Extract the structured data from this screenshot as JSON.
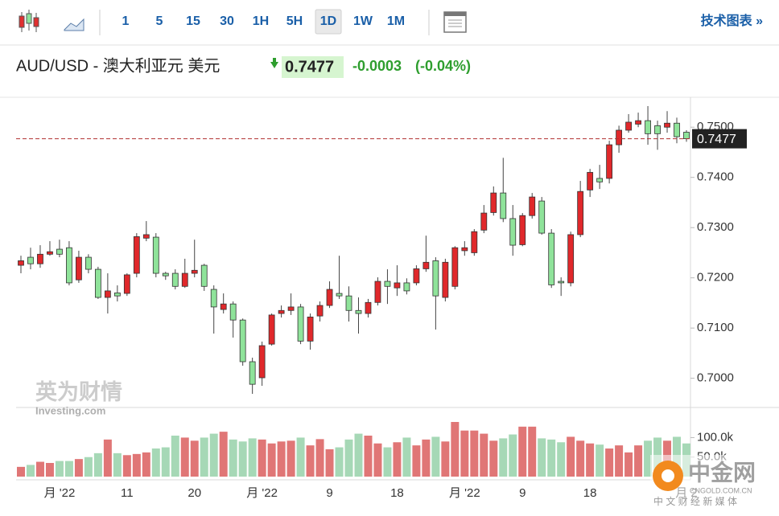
{
  "toolbar": {
    "intervals": [
      "1",
      "5",
      "15",
      "30",
      "1H",
      "5H",
      "1D",
      "1W",
      "1M"
    ],
    "active": "1D",
    "link": "技术图表 »"
  },
  "header": {
    "symbol": "AUD/USD - 澳大利亚元 美元",
    "last": 0.7477,
    "change": -0.0003,
    "change_pct": "(-0.04%)"
  },
  "watermarks": {
    "left_cn": "英为财情",
    "left_en": "Investing.com",
    "right_cn": "中金网",
    "right_url": "CNGOLD.COM.CN",
    "right_sub": "中 文 财 经 新 媒 体"
  },
  "chart_data": {
    "type": "candlestick",
    "categories": [
      null,
      null,
      null,
      null,
      "月 '22",
      null,
      null,
      null,
      null,
      null,
      null,
      "11",
      null,
      null,
      null,
      null,
      null,
      null,
      "20",
      null,
      null,
      null,
      null,
      null,
      null,
      "月 '22",
      null,
      null,
      null,
      null,
      null,
      null,
      "9",
      null,
      null,
      null,
      null,
      null,
      null,
      "18",
      null,
      null,
      null,
      null,
      null,
      null,
      "月 '22",
      null,
      null,
      null,
      null,
      null,
      "9",
      null,
      null,
      null,
      null,
      null,
      null,
      "18",
      null,
      null,
      null,
      null,
      null,
      null,
      null,
      null,
      null,
      "月 2"
    ],
    "candles": [
      [
        0.7225,
        0.7244,
        0.7209,
        0.7234
      ],
      [
        0.7241,
        0.726,
        0.7217,
        0.7228
      ],
      [
        0.7228,
        0.7265,
        0.722,
        0.7247
      ],
      [
        0.7247,
        0.7273,
        0.7244,
        0.7252
      ],
      [
        0.7257,
        0.7276,
        0.7241,
        0.7247
      ],
      [
        0.726,
        0.7273,
        0.7185,
        0.719
      ],
      [
        0.7196,
        0.7254,
        0.719,
        0.7241
      ],
      [
        0.7241,
        0.7247,
        0.7209,
        0.7217
      ],
      [
        0.7217,
        0.7222,
        0.7158,
        0.7161
      ],
      [
        0.7161,
        0.7209,
        0.7129,
        0.7174
      ],
      [
        0.717,
        0.7185,
        0.7153,
        0.7164
      ],
      [
        0.7169,
        0.7209,
        0.7164,
        0.7206
      ],
      [
        0.7209,
        0.7289,
        0.7201,
        0.7282
      ],
      [
        0.7279,
        0.7313,
        0.7273,
        0.7286
      ],
      [
        0.7281,
        0.7289,
        0.7201,
        0.7209
      ],
      [
        0.7209,
        0.7212,
        0.7196,
        0.7204
      ],
      [
        0.7209,
        0.7217,
        0.7177,
        0.7183
      ],
      [
        0.7183,
        0.7238,
        0.718,
        0.7209
      ],
      [
        0.7209,
        0.7276,
        0.7201,
        0.7215
      ],
      [
        0.7225,
        0.7228,
        0.7174,
        0.7183
      ],
      [
        0.7177,
        0.7185,
        0.7089,
        0.7142
      ],
      [
        0.7137,
        0.7169,
        0.7129,
        0.7148
      ],
      [
        0.7148,
        0.7153,
        0.7081,
        0.7116
      ],
      [
        0.7116,
        0.7119,
        0.7025,
        0.7033
      ],
      [
        0.7033,
        0.7041,
        0.6969,
        0.6988
      ],
      [
        0.7001,
        0.7073,
        0.6985,
        0.7065
      ],
      [
        0.7068,
        0.7129,
        0.7065,
        0.7126
      ],
      [
        0.7129,
        0.7145,
        0.7121,
        0.7135
      ],
      [
        0.7135,
        0.7169,
        0.7126,
        0.7142
      ],
      [
        0.7142,
        0.7148,
        0.7068,
        0.7074
      ],
      [
        0.7074,
        0.7129,
        0.7057,
        0.7122
      ],
      [
        0.7124,
        0.7153,
        0.7113,
        0.7145
      ],
      [
        0.7145,
        0.7193,
        0.714,
        0.7177
      ],
      [
        0.7169,
        0.7244,
        0.7158,
        0.7164
      ],
      [
        0.7164,
        0.7183,
        0.7113,
        0.7135
      ],
      [
        0.7135,
        0.7161,
        0.7089,
        0.7129
      ],
      [
        0.7129,
        0.7158,
        0.7121,
        0.7151
      ],
      [
        0.7151,
        0.7201,
        0.7145,
        0.7193
      ],
      [
        0.7193,
        0.7217,
        0.7148,
        0.7183
      ],
      [
        0.718,
        0.7225,
        0.7164,
        0.719
      ],
      [
        0.719,
        0.7199,
        0.7167,
        0.7174
      ],
      [
        0.719,
        0.7225,
        0.7185,
        0.7218
      ],
      [
        0.7218,
        0.7284,
        0.7212,
        0.7231
      ],
      [
        0.7234,
        0.7241,
        0.7097,
        0.7164
      ],
      [
        0.7161,
        0.7238,
        0.7153,
        0.7231
      ],
      [
        0.7183,
        0.7263,
        0.7177,
        0.726
      ],
      [
        0.7254,
        0.7273,
        0.7244,
        0.726
      ],
      [
        0.725,
        0.7297,
        0.7244,
        0.7292
      ],
      [
        0.7295,
        0.7345,
        0.7289,
        0.7329
      ],
      [
        0.733,
        0.7382,
        0.7324,
        0.7369
      ],
      [
        0.7369,
        0.7439,
        0.7311,
        0.7318
      ],
      [
        0.7318,
        0.7345,
        0.7244,
        0.7265
      ],
      [
        0.7266,
        0.7329,
        0.7263,
        0.7324
      ],
      [
        0.7324,
        0.7369,
        0.7318,
        0.7361
      ],
      [
        0.7353,
        0.7361,
        0.7286,
        0.7289
      ],
      [
        0.7289,
        0.7297,
        0.718,
        0.7186
      ],
      [
        0.7193,
        0.7201,
        0.7164,
        0.719
      ],
      [
        0.719,
        0.7292,
        0.7183,
        0.7286
      ],
      [
        0.7286,
        0.7393,
        0.7281,
        0.7372
      ],
      [
        0.7375,
        0.7417,
        0.7361,
        0.741
      ],
      [
        0.7398,
        0.7425,
        0.7377,
        0.7391
      ],
      [
        0.7398,
        0.7473,
        0.7388,
        0.7465
      ],
      [
        0.7465,
        0.7503,
        0.7449,
        0.7494
      ],
      [
        0.7494,
        0.7526,
        0.7489,
        0.751
      ],
      [
        0.7506,
        0.7529,
        0.75,
        0.7513
      ],
      [
        0.7513,
        0.7542,
        0.7465,
        0.7487
      ],
      [
        0.7503,
        0.7513,
        0.7455,
        0.7487
      ],
      [
        0.75,
        0.7532,
        0.7489,
        0.7508
      ],
      [
        0.7508,
        0.7519,
        0.7468,
        0.7481
      ],
      [
        0.749,
        0.7494,
        0.7471,
        0.7477
      ]
    ],
    "up_color": "#e0282b",
    "down_color": "#8fe39a",
    "ylim": [
      0.6945,
      0.7558
    ],
    "yticks": [
      {
        "value": 0.7,
        "label": "0.7000"
      },
      {
        "value": 0.71,
        "label": "0.7100"
      },
      {
        "value": 0.72,
        "label": "0.7200"
      },
      {
        "value": 0.73,
        "label": "0.7300"
      },
      {
        "value": 0.74,
        "label": "0.7400"
      },
      {
        "value": 0.75,
        "label": "0.7500"
      }
    ],
    "last_price": 0.7477,
    "volume": {
      "up_color": "#e07676",
      "down_color": "#a6d8b6",
      "values": [
        25000,
        30000,
        38000,
        35000,
        40000,
        40000,
        45000,
        50000,
        60000,
        95000,
        60000,
        55000,
        58000,
        62000,
        72000,
        75000,
        105000,
        100000,
        92000,
        100000,
        110000,
        115000,
        95000,
        90000,
        98000,
        95000,
        85000,
        90000,
        92000,
        100000,
        80000,
        96000,
        70000,
        75000,
        95000,
        110000,
        105000,
        85000,
        75000,
        88000,
        100000,
        80000,
        95000,
        102000,
        90000,
        140000,
        118000,
        118000,
        110000,
        92000,
        98000,
        108000,
        128000,
        128000,
        98000,
        95000,
        88000,
        102000,
        92000,
        85000,
        82000,
        72000,
        80000,
        62000,
        80000,
        92000,
        100000,
        92000,
        102000,
        85000
      ],
      "ylim": [
        0,
        175000
      ],
      "yticks": [
        {
          "value": 50000,
          "label": "50.0k"
        },
        {
          "value": 100000,
          "label": "100.0k"
        }
      ]
    }
  }
}
